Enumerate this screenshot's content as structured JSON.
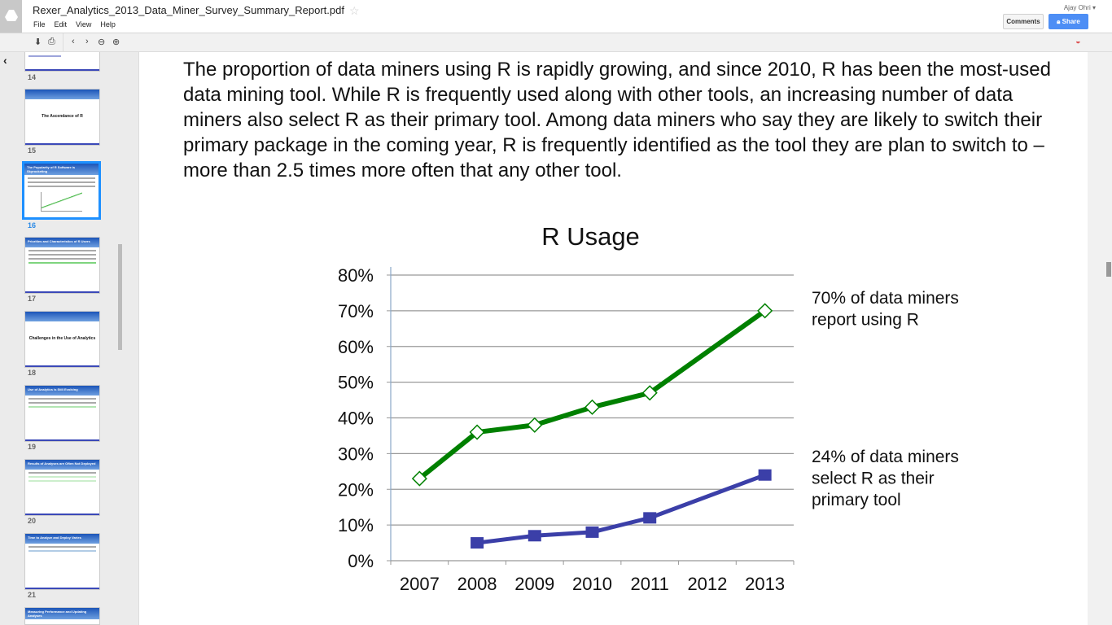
{
  "app": {
    "file_name": "Rexer_Analytics_2013_Data_Miner_Survey_Summary_Report.pdf",
    "user": "Ajay Ohri",
    "menu": [
      "File",
      "Edit",
      "View",
      "Help"
    ],
    "comments_label": "Comments",
    "share_label": "Share"
  },
  "toolbar": {
    "icons": [
      "download-icon",
      "print-icon",
      "prev-page-icon",
      "next-page-icon",
      "zoom-out-icon",
      "zoom-in-icon"
    ]
  },
  "sidebar": {
    "thumbnails": [
      {
        "page": "14",
        "title": ""
      },
      {
        "page": "15",
        "title": "The Ascendance of R"
      },
      {
        "page": "16",
        "title": "The Popularity of R Software is Skyrocketing",
        "selected": true
      },
      {
        "page": "17",
        "title": "Priorities and Characteristics of R Users"
      },
      {
        "page": "18",
        "title": "Challenges in the Use of Analytics"
      },
      {
        "page": "19",
        "title": "Use of Analytics is Still Evolving"
      },
      {
        "page": "20",
        "title": "Results of Analyses are Often Not Deployed"
      },
      {
        "page": "21",
        "title": "Time to Analyze and Deploy Varies"
      },
      {
        "page": "",
        "title": "Measuring Performance and Updating Analyses"
      }
    ]
  },
  "page": {
    "paragraph": "The proportion of data miners using R is rapidly growing, and since 2010, R has been the most-used data mining tool.  While R is frequently used along with other tools, an increasing number of data miners also select R as their primary tool.  Among data miners who say they are likely to switch their primary package in the coming year, R is frequently identified as the tool they are plan to switch to – more than 2.5 times more often that any other tool."
  },
  "chart_data": {
    "type": "line",
    "title": "R Usage",
    "categories": [
      "2007",
      "2008",
      "2009",
      "2010",
      "2011",
      "2012",
      "2013"
    ],
    "ylim": [
      0,
      80
    ],
    "yticks": [
      "0%",
      "10%",
      "20%",
      "30%",
      "40%",
      "50%",
      "60%",
      "70%",
      "80%"
    ],
    "grid": true,
    "series": [
      {
        "values": [
          23,
          36,
          38,
          43,
          47,
          null,
          70
        ],
        "color": "#008000",
        "marker": "open-diamond"
      },
      {
        "values": [
          null,
          5,
          7,
          8,
          12,
          null,
          24
        ],
        "color": "#3b3fa8",
        "marker": "square"
      }
    ],
    "annotations": [
      "70% of data miners report using R",
      "24% of data miners select R as their primary tool"
    ]
  }
}
